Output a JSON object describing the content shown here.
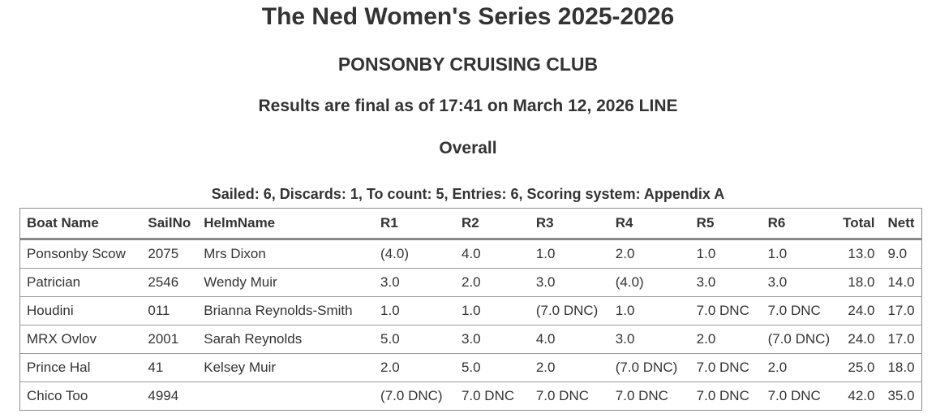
{
  "page": {
    "title": "The Ned Women's Series 2025-2026",
    "club": "PONSONBY CRUISING CLUB",
    "status_line": "Results are final as of 17:41 on March 12, 2026 LINE",
    "section": "Overall",
    "summary": "Sailed: 6, Discards: 1, To count: 5, Entries: 6, Scoring system: Appendix A"
  },
  "results_table": {
    "columns": [
      "Boat Name",
      "SailNo",
      "HelmName",
      "R1",
      "R2",
      "R3",
      "R4",
      "R5",
      "R6",
      "Total",
      "Nett"
    ],
    "rows": [
      {
        "boat": "Ponsonby Scow",
        "sailno": "2075",
        "helm": "Mrs Dixon",
        "races": [
          "(4.0)",
          "4.0",
          "1.0",
          "2.0",
          "1.0",
          "1.0"
        ],
        "total": "13.0",
        "nett": "9.0"
      },
      {
        "boat": "Patrician",
        "sailno": "2546",
        "helm": "Wendy Muir",
        "races": [
          "3.0",
          "2.0",
          "3.0",
          "(4.0)",
          "3.0",
          "3.0"
        ],
        "total": "18.0",
        "nett": "14.0"
      },
      {
        "boat": "Houdini",
        "sailno": "011",
        "helm": "Brianna Reynolds-Smith",
        "races": [
          "1.0",
          "1.0",
          "(7.0 DNC)",
          "1.0",
          "7.0 DNC",
          "7.0 DNC"
        ],
        "total": "24.0",
        "nett": "17.0"
      },
      {
        "boat": "MRX Ovlov",
        "sailno": "2001",
        "helm": "Sarah Reynolds",
        "races": [
          "5.0",
          "3.0",
          "4.0",
          "3.0",
          "2.0",
          "(7.0 DNC)"
        ],
        "total": "24.0",
        "nett": "17.0"
      },
      {
        "boat": "Prince Hal",
        "sailno": "41",
        "helm": "Kelsey Muir",
        "races": [
          "2.0",
          "5.0",
          "2.0",
          "(7.0 DNC)",
          "7.0 DNC",
          "2.0"
        ],
        "total": "25.0",
        "nett": "18.0"
      },
      {
        "boat": "Chico Too",
        "sailno": "4994",
        "helm": "",
        "races": [
          "(7.0 DNC)",
          "7.0 DNC",
          "7.0 DNC",
          "7.0 DNC",
          "7.0 DNC",
          "7.0 DNC"
        ],
        "total": "42.0",
        "nett": "35.0"
      }
    ]
  },
  "colors": {
    "text": "#333333",
    "background": "#ffffff",
    "table_outer_border": "#8c8c8c",
    "header_rule": "#888888",
    "row_rule": "#999999"
  }
}
